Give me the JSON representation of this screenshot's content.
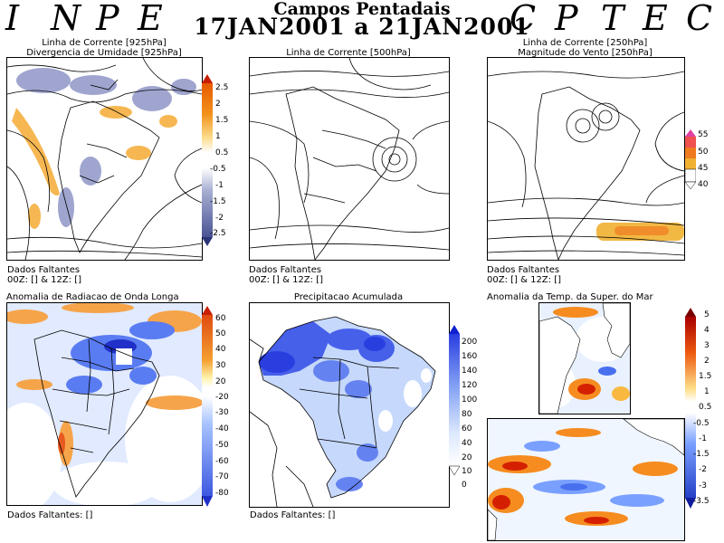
{
  "header": {
    "left_letters": [
      "I",
      "N",
      "P",
      "E"
    ],
    "right_letters": [
      "C",
      "P",
      "T",
      "E",
      "C"
    ],
    "title": "Campos Pentadais",
    "date_range": "17JAN2001 a 21JAN2001"
  },
  "panels": {
    "p1": {
      "title_line1": "Linha de Corrente [925hPa]",
      "title_line2": "Divergencia de Umidade [925hPa]",
      "missing": "Dados Faltantes",
      "missing_detail": "00Z: [] & 12Z: []",
      "colorbar": {
        "labels": [
          "2.5",
          "2",
          "1.5",
          "1",
          "0.5",
          "-0.5",
          "-1",
          "-1.5",
          "-2",
          "-2.5"
        ],
        "colors": [
          "#c81e00",
          "#e85a00",
          "#f2921a",
          "#f6b844",
          "#fbdb8a",
          "#ffffff",
          "#d3d8ee",
          "#a6aed2",
          "#7781b4",
          "#4a5494",
          "#2c3576"
        ]
      }
    },
    "p2": {
      "title_line1": "Linha de Corrente [500hPa]",
      "missing": "Dados Faltantes",
      "missing_detail": "00Z: [] & 12Z: []"
    },
    "p3": {
      "title_line1": "Linha de Corrente [250hPa]",
      "title_line2": "Magnitude do Vento [250hPa]",
      "missing": "Dados Faltantes",
      "missing_detail": "00Z: [] & 12Z: []",
      "colorbar": {
        "labels": [
          "55",
          "50",
          "45",
          "40"
        ],
        "colors": [
          "#e040a0",
          "#f05050",
          "#f07a20",
          "#f0b030",
          "#ffffff"
        ]
      }
    },
    "p4": {
      "title_line1": "Anomalia de Radiacao de Onda Longa",
      "missing": "Dados Faltantes: []",
      "colorbar": {
        "labels": [
          "60",
          "50",
          "40",
          "30",
          "20",
          "-20",
          "-30",
          "-40",
          "-50",
          "-60",
          "-70",
          "-80"
        ],
        "colors": [
          "#c81e00",
          "#e04a10",
          "#ee7a20",
          "#f4a030",
          "#f8c860",
          "#fff4b0",
          "#ffffff",
          "#cfe0ff",
          "#a8c4ff",
          "#7ea2ff",
          "#5a7cf2",
          "#3c58e0",
          "#2030c8"
        ]
      }
    },
    "p5": {
      "title_line1": "Precipitacao Acumulada",
      "missing": "Dados Faltantes: []",
      "colorbar": {
        "labels": [
          "200",
          "160",
          "140",
          "120",
          "100",
          "80",
          "60",
          "40",
          "20",
          "10",
          "0"
        ],
        "colors": [
          "#1020d0",
          "#2a3ee0",
          "#4660ea",
          "#6482f0",
          "#84a2f4",
          "#a6c0f8",
          "#c6d8fb",
          "#dce8fd",
          "#eaf2fe",
          "#f4f8ff",
          "#ffffff"
        ]
      }
    },
    "p6": {
      "title_line1": "Anomalia da Temp. da Super. do Mar",
      "colorbar": {
        "labels": [
          "5",
          "4",
          "3",
          "2",
          "1.5",
          "1",
          "0.5",
          "-0.5",
          "-1",
          "-1.5",
          "-2",
          "-3",
          "-3.5"
        ],
        "colors": [
          "#7a0000",
          "#a80000",
          "#d42000",
          "#ee5a10",
          "#f68c20",
          "#f9b840",
          "#fde08a",
          "#ffffff",
          "#d4e4ff",
          "#a8c6ff",
          "#7aa0ff",
          "#4870ee",
          "#2440c8",
          "#101c9a"
        ]
      }
    }
  }
}
